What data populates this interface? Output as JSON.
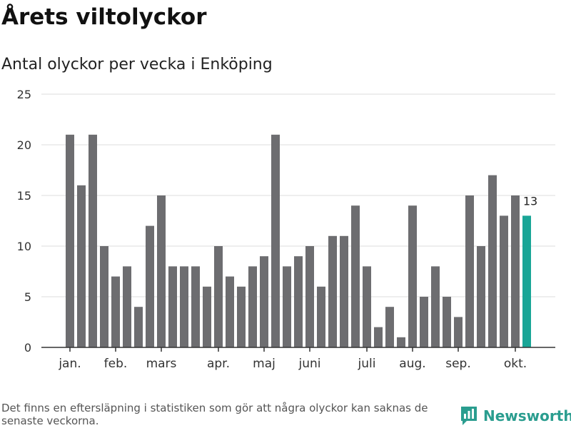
{
  "header": {
    "title": "Årets viltolyckor",
    "subtitle": "Antal olyckor per vecka i Enköping"
  },
  "footer": {
    "note": "Det finns en eftersläpning i statistiken som gör att några olyckor kan saknas de senaste veckorna.",
    "brand": "Newsworthy",
    "brand_icon": "bar-chart-speech-bubble-icon"
  },
  "colors": {
    "bar": "#6d6d70",
    "highlight": "#1aa697",
    "grid": "#dddddd",
    "axis": "#333333",
    "brand": "#2a9d8f"
  },
  "chart_data": {
    "type": "bar",
    "title": "Årets viltolyckor",
    "subtitle": "Antal olyckor per vecka i Enköping",
    "xlabel": "",
    "ylabel": "",
    "ylim": [
      0,
      25
    ],
    "yticks": [
      0,
      5,
      10,
      15,
      20,
      25
    ],
    "grid": true,
    "weeks": [
      1,
      2,
      3,
      4,
      5,
      6,
      7,
      8,
      9,
      10,
      11,
      12,
      13,
      14,
      15,
      16,
      17,
      18,
      19,
      20,
      21,
      22,
      23,
      24,
      25,
      26,
      27,
      28,
      29,
      30,
      31,
      32,
      33,
      34,
      35,
      36,
      37,
      38,
      39,
      40,
      41
    ],
    "values": [
      21,
      16,
      21,
      10,
      7,
      8,
      4,
      12,
      15,
      8,
      8,
      8,
      6,
      10,
      7,
      6,
      8,
      9,
      21,
      8,
      9,
      10,
      6,
      11,
      11,
      14,
      8,
      2,
      4,
      1,
      14,
      5,
      8,
      5,
      3,
      15,
      10,
      17,
      13,
      15,
      13
    ],
    "x_ticks": [
      {
        "label": "jan.",
        "week": 1
      },
      {
        "label": "feb.",
        "week": 5
      },
      {
        "label": "mars",
        "week": 9
      },
      {
        "label": "apr.",
        "week": 14
      },
      {
        "label": "maj",
        "week": 18
      },
      {
        "label": "juni",
        "week": 22
      },
      {
        "label": "juli",
        "week": 27
      },
      {
        "label": "aug.",
        "week": 31
      },
      {
        "label": "sep.",
        "week": 35
      },
      {
        "label": "okt.",
        "week": 40
      }
    ],
    "highlight_index": 40,
    "annotations": [
      {
        "index": 40,
        "text": "13"
      }
    ]
  }
}
